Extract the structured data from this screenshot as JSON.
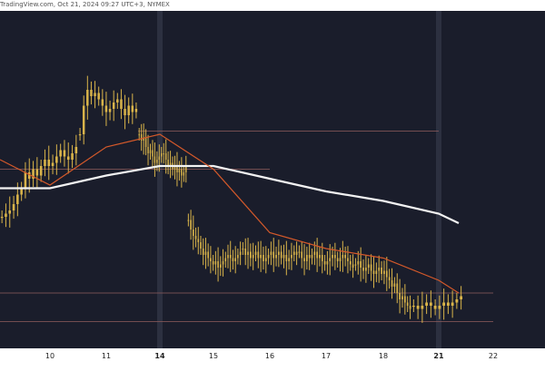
{
  "header": {
    "attribution": "TradingView.com, Oct 21, 2024 09:27 UTC+3",
    "exchange": "NYMEX"
  },
  "colors": {
    "background": "#1a1d2b",
    "candle": "#d9b44a",
    "ema_fast": "#d4592a",
    "ema_slow": "#f2f2f2",
    "hline": "#8a5a5a",
    "session_line": "#2c3040",
    "axis_bg": "#ffffff",
    "axis_text": "#222222"
  },
  "chart_data": {
    "type": "candlestick",
    "x_labels": [
      "10",
      "11",
      "14",
      "15",
      "16",
      "17",
      "18",
      "21",
      "22"
    ],
    "bold_x_labels": [
      "14",
      "21"
    ],
    "session_breaks": [
      "14",
      "21"
    ],
    "y_labels": [],
    "closes": [
      {
        "day": "10",
        "values": [
          0.62,
          0.61,
          0.6,
          0.58,
          0.55,
          0.53,
          0.48,
          0.5,
          0.47,
          0.49,
          0.46,
          0.44,
          0.46,
          0.45,
          0.43,
          0.41,
          0.43,
          0.44,
          0.42,
          0.4
        ]
      },
      {
        "day": "11",
        "values": [
          0.36,
          0.27,
          0.22,
          0.24,
          0.23,
          0.25,
          0.27,
          0.29,
          0.28,
          0.26,
          0.25,
          0.28,
          0.3,
          0.27,
          0.29,
          0.28
        ]
      },
      {
        "day": "14",
        "values": [
          0.36,
          0.38,
          0.37,
          0.4,
          0.42,
          0.41,
          0.43,
          0.45,
          0.44,
          0.43,
          0.42,
          0.42,
          0.44,
          0.46,
          0.45,
          0.47,
          0.46,
          0.48,
          0.47,
          0.49,
          0.48,
          0.46
        ]
      },
      {
        "day": "15",
        "values": [
          0.63,
          0.66,
          0.68,
          0.69,
          0.7,
          0.72,
          0.74,
          0.73,
          0.75,
          0.76,
          0.77,
          0.76,
          0.78,
          0.77,
          0.76,
          0.75,
          0.74,
          0.75,
          0.76,
          0.75,
          0.74,
          0.73
        ]
      },
      {
        "day": "16",
        "values": [
          0.72,
          0.74,
          0.73,
          0.75,
          0.74,
          0.73,
          0.75,
          0.74,
          0.76,
          0.75,
          0.74,
          0.73,
          0.75,
          0.74,
          0.73,
          0.75,
          0.74,
          0.76,
          0.75,
          0.74,
          0.73,
          0.74
        ]
      },
      {
        "day": "17",
        "values": [
          0.73,
          0.75,
          0.76,
          0.74,
          0.75,
          0.74,
          0.73,
          0.75,
          0.74,
          0.76,
          0.77,
          0.76,
          0.75,
          0.74,
          0.75,
          0.76,
          0.75,
          0.74,
          0.75,
          0.76,
          0.77,
          0.78
        ]
      },
      {
        "day": "18",
        "values": [
          0.77,
          0.76,
          0.78,
          0.79,
          0.78,
          0.77,
          0.79,
          0.8,
          0.79,
          0.78,
          0.8,
          0.79,
          0.81,
          0.82,
          0.84,
          0.83,
          0.86,
          0.88,
          0.87,
          0.89,
          0.9,
          0.91
        ]
      },
      {
        "day": "21",
        "values": [
          0.9,
          0.91,
          0.9,
          0.89,
          0.9,
          0.91,
          0.9,
          0.89,
          0.9,
          0.89,
          0.88,
          0.87
        ]
      }
    ],
    "ema_fast": [
      {
        "day": "10",
        "value": 0.52
      },
      {
        "day": "11",
        "value": 0.4
      },
      {
        "day": "14",
        "value": 0.36
      },
      {
        "day": "15",
        "value": 0.47
      },
      {
        "day": "16",
        "value": 0.67
      },
      {
        "day": "17",
        "value": 0.72
      },
      {
        "day": "18",
        "value": 0.75
      },
      {
        "day": "21",
        "value": 0.82
      },
      {
        "day": "21+",
        "value": 0.86
      }
    ],
    "ema_slow": [
      {
        "day": "10",
        "value": 0.53
      },
      {
        "day": "11",
        "value": 0.49
      },
      {
        "day": "14",
        "value": 0.46
      },
      {
        "day": "15",
        "value": 0.46
      },
      {
        "day": "16",
        "value": 0.5
      },
      {
        "day": "17",
        "value": 0.54
      },
      {
        "day": "18",
        "value": 0.57
      },
      {
        "day": "21",
        "value": 0.61
      },
      {
        "day": "21+",
        "value": 0.64
      }
    ],
    "horizontal_levels": [
      {
        "name": "resistance-high",
        "value": 0.35,
        "from_day": "14",
        "to_day": "21"
      },
      {
        "name": "resistance-mid",
        "value": 0.47,
        "from_day": "10",
        "to_day": "16"
      },
      {
        "name": "support-low",
        "value": 0.86,
        "from_day": "10",
        "to_day": "22"
      },
      {
        "name": "support-bottom",
        "value": 0.95,
        "from_day": "10",
        "to_day": "22"
      }
    ]
  }
}
